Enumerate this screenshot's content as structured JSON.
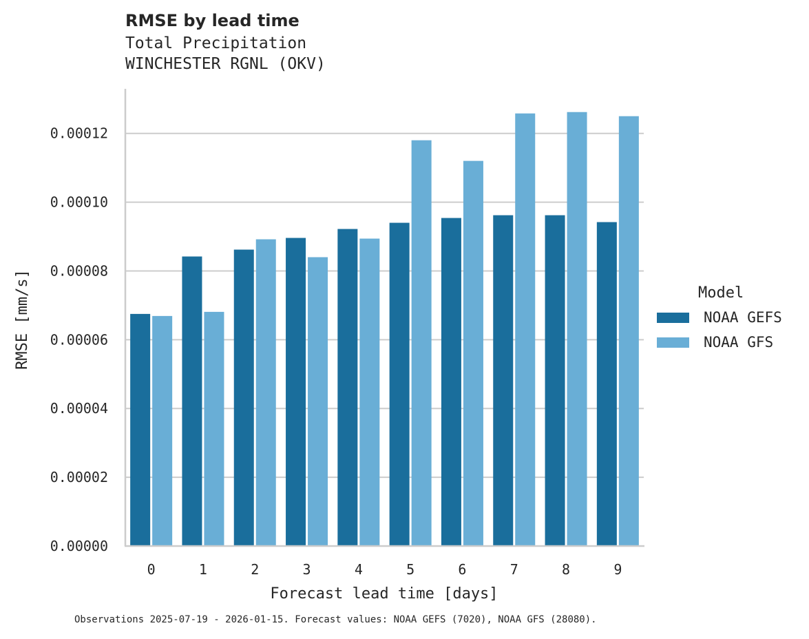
{
  "header": {
    "title": "RMSE by lead time",
    "subtitle_line1": "Total Precipitation",
    "subtitle_line2": "WINCHESTER RGNL (OKV)"
  },
  "legend": {
    "title": "Model",
    "items": [
      {
        "label": "NOAA GEFS",
        "color": "#1a6e9c"
      },
      {
        "label": "NOAA GFS",
        "color": "#69aed6"
      }
    ]
  },
  "axes": {
    "xlabel": "Forecast lead time [days]",
    "ylabel": "RMSE [mm/s]"
  },
  "caption": "Observations 2025-07-19 - 2026-01-15. Forecast values: NOAA GEFS (7020), NOAA GFS (28080).",
  "chart_data": {
    "type": "bar",
    "title": "RMSE by lead time",
    "subtitle": "Total Precipitation / WINCHESTER RGNL (OKV)",
    "xlabel": "Forecast lead time [days]",
    "ylabel": "RMSE [mm/s]",
    "categories": [
      "0",
      "1",
      "2",
      "3",
      "4",
      "5",
      "6",
      "7",
      "8",
      "9"
    ],
    "series": [
      {
        "name": "NOAA GEFS",
        "color": "#1a6e9c",
        "values": [
          6.75e-05,
          8.42e-05,
          8.62e-05,
          8.96e-05,
          9.22e-05,
          9.4e-05,
          9.54e-05,
          9.62e-05,
          9.62e-05,
          9.42e-05
        ]
      },
      {
        "name": "NOAA GFS",
        "color": "#69aed6",
        "values": [
          6.69e-05,
          6.81e-05,
          8.92e-05,
          8.4e-05,
          8.94e-05,
          0.000118,
          0.000112,
          0.0001258,
          0.0001262,
          0.000125
        ]
      }
    ],
    "yticks": [
      "0.00000",
      "0.00002",
      "0.00004",
      "0.00006",
      "0.00008",
      "0.00010",
      "0.00012"
    ],
    "ytick_values": [
      0,
      2e-05,
      4e-05,
      6e-05,
      8e-05,
      0.0001,
      0.00012
    ],
    "ylim": [
      0,
      0.000133
    ],
    "grid": "horizontal",
    "legend_position": "right"
  }
}
